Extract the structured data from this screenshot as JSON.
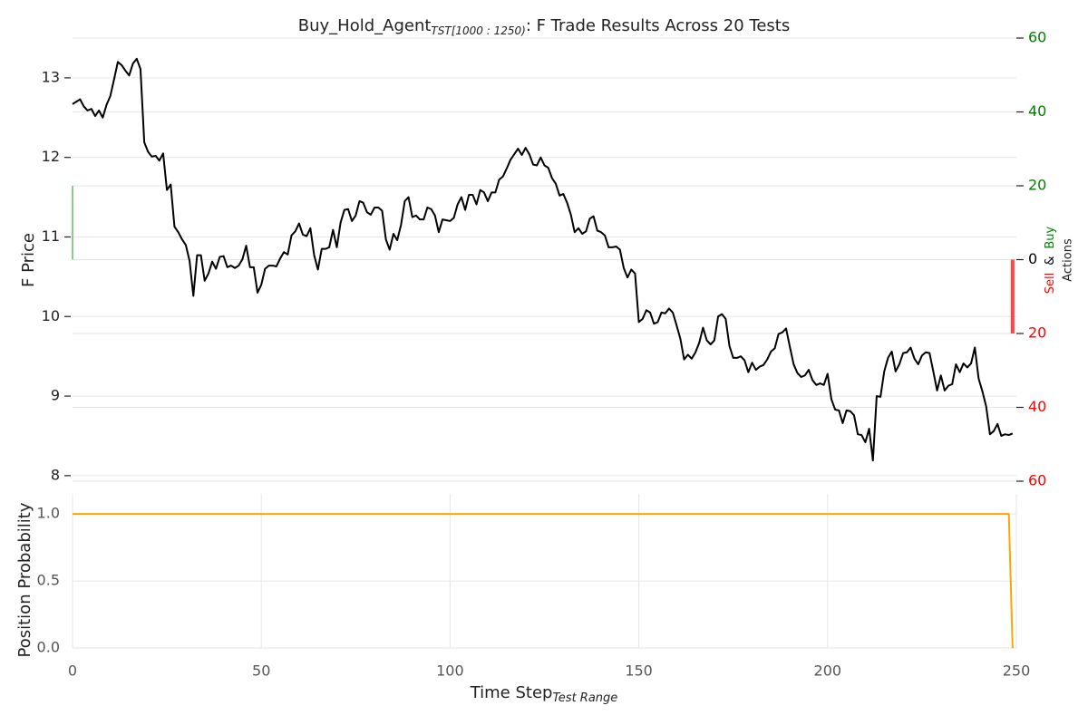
{
  "chart_data": [
    {
      "type": "line",
      "title": {
        "main": "Buy_Hold_Agent",
        "subscript": "TST[1000 : 1250)",
        "suffix": ": F Trade Results Across 20 Tests"
      },
      "ylabel": "F Price",
      "xlim": [
        0,
        250
      ],
      "ylim": [
        7.93,
        13.5
      ],
      "yticks": [
        8,
        9,
        10,
        11,
        12,
        13
      ],
      "y2label": {
        "text": "Actions",
        "buy": "Buy",
        "and": "&",
        "sell": "Sell"
      },
      "y2lim": [
        -60,
        60
      ],
      "y2ticks": [
        {
          "value": -60,
          "label": "60"
        },
        {
          "value": -40,
          "label": "40"
        },
        {
          "value": -20,
          "label": "20"
        },
        0,
        20,
        40,
        60
      ],
      "y2tick_colors": {
        "positive": "#008000",
        "zero": "#000000",
        "negative": "#ff0000"
      },
      "grid": true,
      "series": [
        {
          "color": "#000000",
          "x": [
            0,
            1,
            2,
            3,
            4,
            5,
            6,
            7,
            8,
            9,
            10,
            11,
            12,
            13,
            14,
            15,
            16,
            17,
            18,
            19,
            20,
            21,
            22,
            23,
            24,
            25,
            26,
            27,
            28,
            29,
            30,
            31,
            32,
            33,
            34,
            35,
            36,
            37,
            38,
            39,
            40,
            41,
            42,
            43,
            44,
            45,
            46,
            47,
            48,
            49,
            50,
            51,
            52,
            53,
            54,
            55,
            56,
            57,
            58,
            59,
            60,
            61,
            62,
            63,
            64,
            65,
            66,
            67,
            68,
            69,
            70,
            71,
            72,
            73,
            74,
            75,
            76,
            77,
            78,
            79,
            80,
            81,
            82,
            83,
            84,
            85,
            86,
            87,
            88,
            89,
            90,
            91,
            92,
            93,
            94,
            95,
            96,
            97,
            98,
            99,
            100,
            101,
            102,
            103,
            104,
            105,
            106,
            107,
            108,
            109,
            110,
            111,
            112,
            113,
            114,
            115,
            116,
            117,
            118,
            119,
            120,
            121,
            122,
            123,
            124,
            125,
            126,
            127,
            128,
            129,
            130,
            131,
            132,
            133,
            134,
            135,
            136,
            137,
            138,
            139,
            140,
            141,
            142,
            143,
            144,
            145,
            146,
            147,
            148,
            149,
            150,
            151,
            152,
            153,
            154,
            155,
            156,
            157,
            158,
            159,
            160,
            161,
            162,
            163,
            164,
            165,
            166,
            167,
            168,
            169,
            170,
            171,
            172,
            173,
            174,
            175,
            176,
            177,
            178,
            179,
            180,
            181,
            182,
            183,
            184,
            185,
            186,
            187,
            188,
            189,
            190,
            191,
            192,
            193,
            194,
            195,
            196,
            197,
            198,
            199,
            200,
            201,
            202,
            203,
            204,
            205,
            206,
            207,
            208,
            209,
            210,
            211,
            212,
            213,
            214,
            215,
            216,
            217,
            218,
            219,
            220,
            221,
            222,
            223,
            224,
            225,
            226,
            227,
            228,
            229,
            230,
            231,
            232,
            233,
            234,
            235,
            236,
            237,
            238,
            239,
            240,
            241,
            242,
            243,
            244,
            245,
            246,
            247,
            248,
            249
          ],
          "values": [
            12.67,
            12.7,
            12.73,
            12.64,
            12.59,
            12.61,
            12.52,
            12.59,
            12.5,
            12.66,
            12.77,
            12.98,
            13.2,
            13.16,
            13.09,
            13.03,
            13.18,
            13.24,
            13.11,
            12.19,
            12.07,
            12.01,
            12.02,
            11.96,
            12.05,
            11.59,
            11.66,
            11.13,
            11.06,
            10.97,
            10.9,
            10.7,
            10.26,
            10.77,
            10.77,
            10.45,
            10.54,
            10.69,
            10.6,
            10.75,
            10.76,
            10.62,
            10.64,
            10.61,
            10.64,
            10.72,
            10.89,
            10.62,
            10.62,
            10.3,
            10.4,
            10.6,
            10.64,
            10.64,
            10.63,
            10.73,
            10.81,
            10.78,
            11.02,
            11.07,
            11.17,
            11.03,
            11.01,
            11.11,
            10.77,
            10.59,
            10.85,
            10.85,
            10.87,
            11.09,
            10.87,
            11.18,
            11.34,
            11.35,
            11.2,
            11.27,
            11.45,
            11.43,
            11.31,
            11.28,
            11.37,
            11.37,
            11.33,
            10.97,
            10.84,
            11.04,
            10.96,
            11.15,
            11.45,
            11.5,
            11.25,
            11.27,
            11.22,
            11.22,
            11.37,
            11.35,
            11.27,
            11.06,
            11.22,
            11.21,
            11.2,
            11.24,
            11.41,
            11.5,
            11.34,
            11.53,
            11.53,
            11.41,
            11.59,
            11.56,
            11.45,
            11.56,
            11.56,
            11.72,
            11.76,
            11.86,
            11.97,
            12.04,
            12.11,
            12.03,
            12.12,
            12.04,
            11.91,
            11.9,
            12.0,
            11.9,
            11.87,
            11.74,
            11.67,
            11.52,
            11.54,
            11.43,
            11.28,
            11.06,
            11.11,
            11.04,
            11.07,
            11.23,
            11.26,
            11.08,
            11.06,
            11.02,
            10.87,
            10.87,
            10.88,
            10.84,
            10.61,
            10.49,
            10.59,
            10.54,
            9.93,
            9.97,
            10.08,
            10.05,
            9.91,
            9.93,
            10.05,
            10.04,
            10.1,
            10.05,
            9.89,
            9.72,
            9.46,
            9.52,
            9.47,
            9.55,
            9.67,
            9.86,
            9.7,
            9.65,
            9.7,
            10.0,
            10.03,
            9.97,
            9.63,
            9.48,
            9.48,
            9.5,
            9.45,
            9.3,
            9.42,
            9.33,
            9.37,
            9.39,
            9.46,
            9.56,
            9.6,
            9.78,
            9.8,
            9.85,
            9.62,
            9.4,
            9.29,
            9.24,
            9.26,
            9.33,
            9.2,
            9.14,
            9.16,
            9.14,
            9.28,
            8.96,
            8.83,
            8.82,
            8.66,
            8.82,
            8.81,
            8.76,
            8.52,
            8.51,
            8.42,
            8.59,
            8.19,
            9.0,
            8.99,
            9.31,
            9.48,
            9.56,
            9.31,
            9.4,
            9.54,
            9.55,
            9.61,
            9.47,
            9.4,
            9.51,
            9.55,
            9.54,
            9.31,
            9.07,
            9.26,
            9.07,
            9.13,
            9.15,
            9.4,
            9.3,
            9.41,
            9.36,
            9.41,
            9.61,
            9.22,
            9.06,
            8.87,
            8.52,
            8.56,
            8.65,
            8.5,
            8.52,
            8.51,
            8.53
          ]
        }
      ],
      "buys": {
        "axis": "y2",
        "color": "#66bb66",
        "x": [
          0
        ],
        "values": [
          20
        ]
      },
      "sells": {
        "axis": "y2",
        "color": "#ff4444",
        "x": [
          249
        ],
        "values": [
          -20
        ]
      }
    },
    {
      "type": "line",
      "ylabel": "Position Probability",
      "xlabel": {
        "main": "Time Step",
        "subscript": "Test Range"
      },
      "xlim": [
        0,
        250
      ],
      "xticks": [
        0,
        50,
        100,
        150,
        200,
        250
      ],
      "ylim": [
        0,
        1.15
      ],
      "yticks": [
        {
          "value": 0,
          "label": "0.0"
        },
        0.5,
        {
          "value": 1,
          "label": "1.0"
        }
      ],
      "grid": true,
      "series": [
        {
          "color": "#ffa500",
          "x": [
            0,
            248,
            249
          ],
          "values": [
            1,
            1,
            0
          ]
        }
      ]
    }
  ]
}
